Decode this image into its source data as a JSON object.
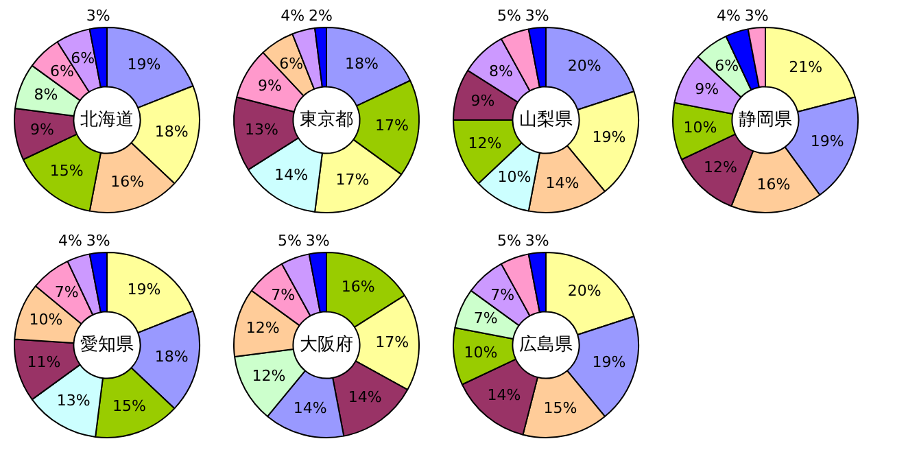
{
  "chart_data": [
    {
      "type": "donut",
      "title": "北海道",
      "categories": [
        null,
        null,
        null,
        null,
        null,
        null,
        null,
        null,
        null
      ],
      "values": [
        19,
        18,
        16,
        15,
        9,
        8,
        6,
        6,
        3
      ],
      "value_labels": [
        "19%",
        "18%",
        "16%",
        "15%",
        "9%",
        "8%",
        "6%",
        "6%",
        "3%"
      ],
      "colors": [
        "#9999ff",
        "#ffff99",
        "#ffcc99",
        "#99cc00",
        "#993366",
        "#ccffcc",
        "#ff99cc",
        "#cc99ff",
        "#0000ff"
      ]
    },
    {
      "type": "donut",
      "title": "東京都",
      "categories": [
        null,
        null,
        null,
        null,
        null,
        null,
        null,
        null,
        null
      ],
      "values": [
        18,
        17,
        17,
        14,
        13,
        9,
        6,
        4,
        2
      ],
      "value_labels": [
        "18%",
        "17%",
        "17%",
        "14%",
        "13%",
        "9%",
        "6%",
        "4%",
        "2%"
      ],
      "colors": [
        "#9999ff",
        "#99cc00",
        "#ffff99",
        "#ccffff",
        "#993366",
        "#ff99cc",
        "#ffcc99",
        "#cc99ff",
        "#0000ff"
      ]
    },
    {
      "type": "donut",
      "title": "山梨県",
      "categories": [
        null,
        null,
        null,
        null,
        null,
        null,
        null,
        null,
        null
      ],
      "values": [
        20,
        19,
        14,
        10,
        12,
        9,
        8,
        5,
        3
      ],
      "value_labels": [
        "20%",
        "19%",
        "14%",
        "10%",
        "12%",
        "9%",
        "8%",
        "5%",
        "3%"
      ],
      "colors": [
        "#9999ff",
        "#ffff99",
        "#ffcc99",
        "#ccffff",
        "#99cc00",
        "#993366",
        "#cc99ff",
        "#ff99cc",
        "#0000ff"
      ]
    },
    {
      "type": "donut",
      "title": "静岡県",
      "categories": [
        null,
        null,
        null,
        null,
        null,
        null,
        null,
        null,
        null
      ],
      "values": [
        21,
        19,
        16,
        12,
        10,
        9,
        6,
        4,
        3
      ],
      "value_labels": [
        "21%",
        "19%",
        "16%",
        "12%",
        "10%",
        "9%",
        "6%",
        "4%",
        "3%"
      ],
      "colors": [
        "#ffff99",
        "#9999ff",
        "#ffcc99",
        "#993366",
        "#99cc00",
        "#cc99ff",
        "#ccffcc",
        "#0000ff",
        "#ff99cc"
      ]
    },
    {
      "type": "donut",
      "title": "愛知県",
      "categories": [
        null,
        null,
        null,
        null,
        null,
        null,
        null,
        null,
        null
      ],
      "values": [
        19,
        18,
        15,
        13,
        11,
        10,
        7,
        4,
        3
      ],
      "value_labels": [
        "19%",
        "18%",
        "15%",
        "13%",
        "11%",
        "10%",
        "7%",
        "4%",
        "3%"
      ],
      "colors": [
        "#ffff99",
        "#9999ff",
        "#99cc00",
        "#ccffff",
        "#993366",
        "#ffcc99",
        "#ff99cc",
        "#cc99ff",
        "#0000ff"
      ]
    },
    {
      "type": "donut",
      "title": "大阪府",
      "categories": [
        null,
        null,
        null,
        null,
        null,
        null,
        null,
        null,
        null
      ],
      "values": [
        16,
        17,
        14,
        14,
        12,
        12,
        7,
        5,
        3
      ],
      "value_labels": [
        "16%",
        "17%",
        "14%",
        "14%",
        "12%",
        "12%",
        "7%",
        "5%",
        "3%"
      ],
      "colors": [
        "#99cc00",
        "#ffff99",
        "#993366",
        "#9999ff",
        "#ccffcc",
        "#ffcc99",
        "#ff99cc",
        "#cc99ff",
        "#0000ff"
      ]
    },
    {
      "type": "donut",
      "title": "広島県",
      "categories": [
        null,
        null,
        null,
        null,
        null,
        null,
        null,
        null,
        null
      ],
      "values": [
        20,
        19,
        15,
        14,
        10,
        7,
        7,
        5,
        3
      ],
      "value_labels": [
        "20%",
        "19%",
        "15%",
        "14%",
        "10%",
        "7%",
        "7%",
        "5%",
        "3%"
      ],
      "colors": [
        "#ffff99",
        "#9999ff",
        "#ffcc99",
        "#993366",
        "#99cc00",
        "#ccffcc",
        "#cc99ff",
        "#ff99cc",
        "#0000ff"
      ]
    }
  ]
}
